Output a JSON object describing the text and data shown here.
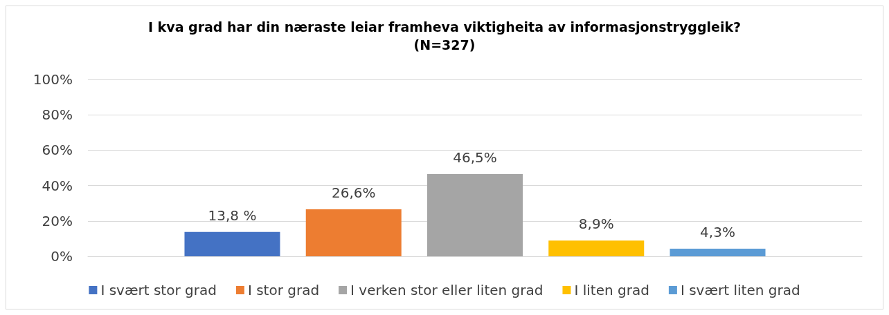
{
  "chart_data": {
    "type": "bar",
    "title": "I kva grad har din næraste leiar framheva viktigheita av informasjonstryggleik?\n(N=327)",
    "categories": [
      null
    ],
    "series": [
      {
        "name": "I svært stor grad",
        "color": "#4472c4",
        "values": [
          13.8
        ],
        "value_labels": [
          "13,8 %"
        ]
      },
      {
        "name": "I stor grad",
        "color": "#ed7d31",
        "values": [
          26.6
        ],
        "value_labels": [
          "26,6%"
        ]
      },
      {
        "name": "I verken stor eller liten grad",
        "color": "#a5a5a5",
        "values": [
          46.5
        ],
        "value_labels": [
          "46,5%"
        ]
      },
      {
        "name": "I liten grad",
        "color": "#ffc000",
        "values": [
          8.9
        ],
        "value_labels": [
          "8,9%"
        ]
      },
      {
        "name": "I svært liten grad",
        "color": "#5b9bd5",
        "values": [
          4.3
        ],
        "value_labels": [
          "4,3%"
        ]
      }
    ],
    "ylim": [
      0,
      100
    ],
    "yticks": [
      {
        "value": 0,
        "label": "0%"
      },
      {
        "value": 20,
        "label": "20%"
      },
      {
        "value": 40,
        "label": "40%"
      },
      {
        "value": 60,
        "label": "60%"
      },
      {
        "value": 80,
        "label": "80%"
      },
      {
        "value": 100,
        "label": "100%"
      }
    ],
    "grid": "y",
    "legend": "bottom"
  }
}
